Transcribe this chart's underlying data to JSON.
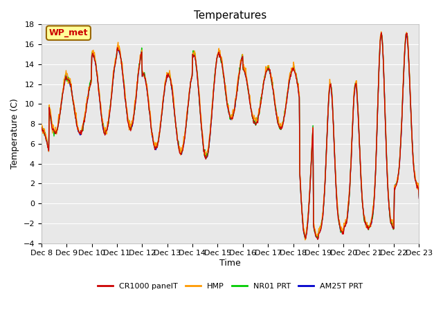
{
  "title": "Temperatures",
  "xlabel": "Time",
  "ylabel": "Temperature (C)",
  "ylim": [
    -4,
    18
  ],
  "yticks": [
    -4,
    -2,
    0,
    2,
    4,
    6,
    8,
    10,
    12,
    14,
    16,
    18
  ],
  "x_labels": [
    "Dec 8",
    "Dec 9",
    "Dec 10",
    "Dec 11",
    "Dec 12",
    "Dec 13",
    "Dec 14",
    "Dec 15",
    "Dec 16",
    "Dec 17",
    "Dec 18",
    "Dec 19",
    "Dec 20",
    "Dec 21",
    "Dec 22",
    "Dec 23"
  ],
  "legend_labels": [
    "CR1000 panelT",
    "HMP",
    "NR01 PRT",
    "AM25T PRT"
  ],
  "series_colors": [
    "#cc0000",
    "#ff9900",
    "#00cc00",
    "#0000cc"
  ],
  "annotation_text": "WP_met",
  "annotation_color": "#cc0000",
  "annotation_bg": "#ffff99",
  "annotation_border": "#996600",
  "bg_color": "#e8e8e8",
  "grid_color": "#ffffff",
  "linewidth": 1.0,
  "title_fontsize": 11,
  "tick_fontsize": 8,
  "label_fontsize": 9,
  "legend_fontsize": 8
}
